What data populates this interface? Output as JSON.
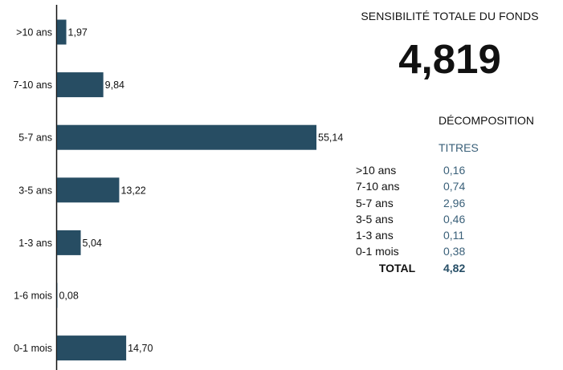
{
  "chart_data": {
    "type": "bar",
    "orientation": "horizontal",
    "categories": [
      ">10 ans",
      "7-10 ans",
      "5-7 ans",
      "3-5 ans",
      "1-3 ans",
      "1-6 mois",
      "0-1 mois"
    ],
    "values": [
      1.97,
      9.84,
      55.14,
      13.22,
      5.04,
      0.08,
      14.7
    ],
    "value_labels": [
      "1,97",
      "9,84",
      "55,14",
      "13,22",
      "5,04",
      "0,08",
      "14,70"
    ],
    "xlim": [
      0,
      55.14
    ],
    "grid": false,
    "legend": "none",
    "bar_color": "#274d63"
  },
  "panel": {
    "title": "SENSIBILITÉ TOTALE DU FONDS",
    "total_value": "4,819",
    "decomposition_title": "DÉCOMPOSITION",
    "column_header": "TITRES",
    "rows": [
      {
        "label": ">10 ans",
        "value": "0,16"
      },
      {
        "label": "7-10 ans",
        "value": "0,74"
      },
      {
        "label": "5-7 ans",
        "value": "2,96"
      },
      {
        "label": "3-5 ans",
        "value": "0,46"
      },
      {
        "label": "1-3 ans",
        "value": "0,11"
      },
      {
        "label": "0-1 mois",
        "value": "0,38"
      }
    ],
    "total_label": "TOTAL",
    "total_sum": "4,82"
  },
  "colors": {
    "bar": "#274d63",
    "accent_text": "#3a6079"
  }
}
